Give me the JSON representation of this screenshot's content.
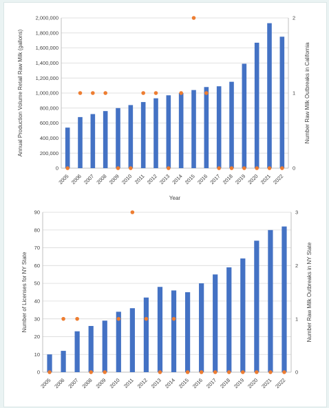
{
  "colors": {
    "bar": "#4472c4",
    "point": "#ed7d31",
    "axis": "#bfbfbf",
    "grid": "#d9d9d9",
    "text": "#404040"
  },
  "chart_data": [
    {
      "type": "bar",
      "title": "",
      "xlabel": "Year",
      "ylabel": "Annual Production Volume Retail Raw Milk (gallons)",
      "y2label": "Number Raw Milk Outbreaks in California",
      "categories": [
        "2005",
        "2006",
        "2007",
        "2008",
        "2009",
        "2010",
        "2011",
        "2012",
        "2013",
        "2014",
        "2015",
        "2016",
        "2017",
        "2018",
        "2019",
        "2020",
        "2021",
        "2022"
      ],
      "ylim": [
        0,
        2000000
      ],
      "yticks": [
        "0",
        "200,000",
        "400,000",
        "600,000",
        "800,000",
        "1,000,000",
        "1,200,000",
        "1,400,000",
        "1,600,000",
        "1,800,000",
        "2,000,000"
      ],
      "y2lim": [
        0,
        2
      ],
      "y2ticks": [
        "0",
        "1",
        "2"
      ],
      "grid": true,
      "series": [
        {
          "type": "bar",
          "axis": "left",
          "values": [
            540000,
            680000,
            720000,
            760000,
            800000,
            840000,
            880000,
            930000,
            970000,
            1000000,
            1040000,
            1080000,
            1090000,
            1150000,
            1390000,
            1670000,
            1930000,
            1750000
          ]
        },
        {
          "type": "scatter",
          "axis": "right",
          "values": [
            0,
            1,
            1,
            1,
            0,
            0,
            1,
            1,
            0,
            1,
            2,
            1,
            0,
            0,
            0,
            0,
            0,
            0
          ]
        }
      ]
    },
    {
      "type": "bar",
      "title": "",
      "xlabel": "",
      "ylabel": "Number of Licenses for NY State",
      "y2label": "Number Raw Milk Outbreaks in NY State",
      "categories": [
        "2005",
        "2006",
        "2007",
        "2008",
        "2009",
        "2010",
        "2011",
        "2012",
        "2013",
        "2014",
        "2015",
        "2016",
        "2017",
        "2018",
        "2019",
        "2020",
        "2021",
        "2022"
      ],
      "ylim": [
        0,
        90
      ],
      "yticks": [
        "0",
        "10",
        "20",
        "30",
        "40",
        "50",
        "60",
        "70",
        "80",
        "90"
      ],
      "y2lim": [
        0,
        3
      ],
      "y2ticks": [
        "0",
        "1",
        "2",
        "3"
      ],
      "grid": true,
      "series": [
        {
          "type": "bar",
          "axis": "left",
          "values": [
            10,
            12,
            23,
            26,
            29,
            34,
            36,
            42,
            48,
            46,
            45,
            50,
            55,
            59,
            64,
            74,
            80,
            82
          ]
        },
        {
          "type": "scatter",
          "axis": "right",
          "values": [
            0,
            1,
            1,
            0,
            0,
            1,
            3,
            1,
            0,
            1,
            0,
            0,
            0,
            0,
            0,
            0,
            0,
            0
          ]
        }
      ]
    }
  ]
}
